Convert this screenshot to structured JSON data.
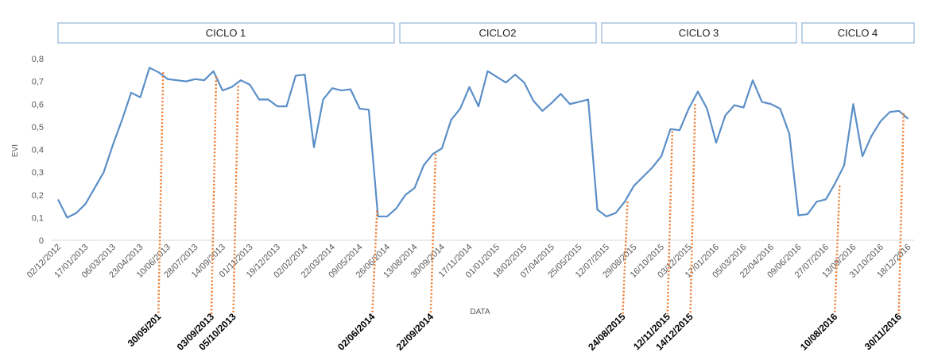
{
  "chart_data": {
    "type": "line",
    "y_label": "EVI",
    "x_label": "DATA",
    "cycles": [
      "CICLO 1",
      "CICLO2",
      "CICLO 3",
      "CICLO 4"
    ],
    "categories": [
      "02/12/2012",
      null,
      null,
      "17/01/2013",
      null,
      null,
      "06/03/2013",
      null,
      null,
      "23/04/2013",
      null,
      null,
      "10/06/2013",
      null,
      null,
      "28/07/2013",
      null,
      null,
      "14/09/2013",
      null,
      null,
      "01/11/2013",
      null,
      null,
      "19/12/2013",
      null,
      null,
      "02/02/2014",
      null,
      null,
      "22/03/2014",
      null,
      null,
      "09/05/2014",
      null,
      null,
      "26/06/2014",
      null,
      null,
      "13/08/2014",
      null,
      null,
      "30/09/2014",
      null,
      null,
      "17/11/2014",
      null,
      null,
      "01/01/2015",
      null,
      null,
      "18/02/2015",
      null,
      null,
      "07/04/2015",
      null,
      null,
      "25/05/2015",
      null,
      null,
      "12/07/2015",
      null,
      null,
      "29/08/2015",
      null,
      null,
      "16/10/2015",
      null,
      null,
      "03/12/2015",
      null,
      null,
      "17/01/2016",
      null,
      null,
      "05/03/2016",
      null,
      null,
      "22/04/2016",
      null,
      null,
      "09/06/2016",
      null,
      null,
      "27/07/2016",
      null,
      null,
      "13/09/2016",
      null,
      null,
      "31/10/2016",
      null,
      null,
      "18/12/2016"
    ],
    "series": [
      {
        "name": "EVI",
        "color": "#5b8fc7",
        "values": [
          0.18,
          0.1,
          0.12,
          0.16,
          0.23,
          0.3,
          0.42,
          0.53,
          0.65,
          0.63,
          0.76,
          0.74,
          0.71,
          0.705,
          0.7,
          0.71,
          0.705,
          0.745,
          0.66,
          0.675,
          0.705,
          0.685,
          0.62,
          0.62,
          0.59,
          0.59,
          0.725,
          0.73,
          0.41,
          0.62,
          0.67,
          0.66,
          0.665,
          0.58,
          0.575,
          0.105,
          0.105,
          0.14,
          0.2,
          0.23,
          0.33,
          0.38,
          0.405,
          0.53,
          0.58,
          0.675,
          0.59,
          0.745,
          0.72,
          0.695,
          0.73,
          0.695,
          0.615,
          0.57,
          0.605,
          0.645,
          0.6,
          0.61,
          0.62,
          0.135,
          0.105,
          0.12,
          0.17,
          0.24,
          0.28,
          0.32,
          0.37,
          0.49,
          0.485,
          0.58,
          0.655,
          0.58,
          0.43,
          0.55,
          0.595,
          0.585,
          0.705,
          0.61,
          0.6,
          0.58,
          0.47,
          0.11,
          0.115,
          0.17,
          0.18,
          0.25,
          0.33,
          0.6,
          0.37,
          0.46,
          0.525,
          0.565,
          0.57,
          0.535
        ]
      }
    ],
    "annotations": [
      {
        "label": "30/05/201",
        "x": 11.5,
        "value": 0.74
      },
      {
        "label": "03/09/2013",
        "x": 17.3,
        "value": 0.72
      },
      {
        "label": "05/10/2013",
        "x": 19.7,
        "value": 0.68
      },
      {
        "label": "02/06/2014",
        "x": 34.9,
        "value": 0.13
      },
      {
        "label": "22/09/2014",
        "x": 41.3,
        "value": 0.38
      },
      {
        "label": "24/08/2015",
        "x": 62.3,
        "value": 0.17
      },
      {
        "label": "12/11/2015",
        "x": 67.2,
        "value": 0.48
      },
      {
        "label": "14/12/2015",
        "x": 69.7,
        "value": 0.6
      },
      {
        "label": "10/08/2016",
        "x": 85.5,
        "value": 0.24
      },
      {
        "label": "30/11/2016",
        "x": 92.5,
        "value": 0.56
      }
    ],
    "annotation_color": "#ed7d31",
    "ylim": [
      0,
      0.8
    ],
    "yticks": [
      0,
      {
        "value": 0.1,
        "label": "0,1"
      },
      {
        "value": 0.2,
        "label": "0,2"
      },
      {
        "value": 0.3,
        "label": "0,3"
      },
      {
        "value": 0.4,
        "label": "0,4"
      },
      {
        "value": 0.5,
        "label": "0,5"
      },
      {
        "value": 0.6,
        "label": "0,6"
      },
      {
        "value": 0.7,
        "label": "0,7"
      },
      {
        "value": 0.8,
        "label": "0,8"
      }
    ],
    "grid": false
  }
}
